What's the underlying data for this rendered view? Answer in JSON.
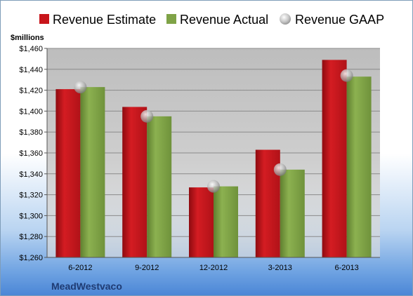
{
  "chart_data": {
    "type": "bar",
    "categories": [
      "6-2012",
      "9-2012",
      "12-2012",
      "3-2013",
      "6-2013"
    ],
    "series": [
      {
        "name": "Revenue Estimate",
        "values": [
          1421,
          1404,
          1327,
          1363,
          1449
        ],
        "color": "#c8151b"
      },
      {
        "name": "Revenue Actual",
        "values": [
          1423,
          1395,
          1328,
          1344,
          1433
        ],
        "color": "#7fa347"
      },
      {
        "name": "Revenue GAAP",
        "values": [
          1423,
          1395,
          1328,
          1344,
          1434
        ],
        "color": "#b5b5b5",
        "marker": "sphere"
      }
    ],
    "ylabel": "$millions",
    "ylim": [
      1260,
      1460
    ],
    "yticks": [
      1260,
      1280,
      1300,
      1320,
      1340,
      1360,
      1380,
      1400,
      1420,
      1440,
      1460
    ],
    "ytick_labels": [
      "$1,260",
      "$1,280",
      "$1,300",
      "$1,320",
      "$1,340",
      "$1,360",
      "$1,380",
      "$1,400",
      "$1,420",
      "$1,440",
      "$1,460"
    ],
    "grid": true,
    "legend_position": "top",
    "company": "MeadWestvaco"
  }
}
